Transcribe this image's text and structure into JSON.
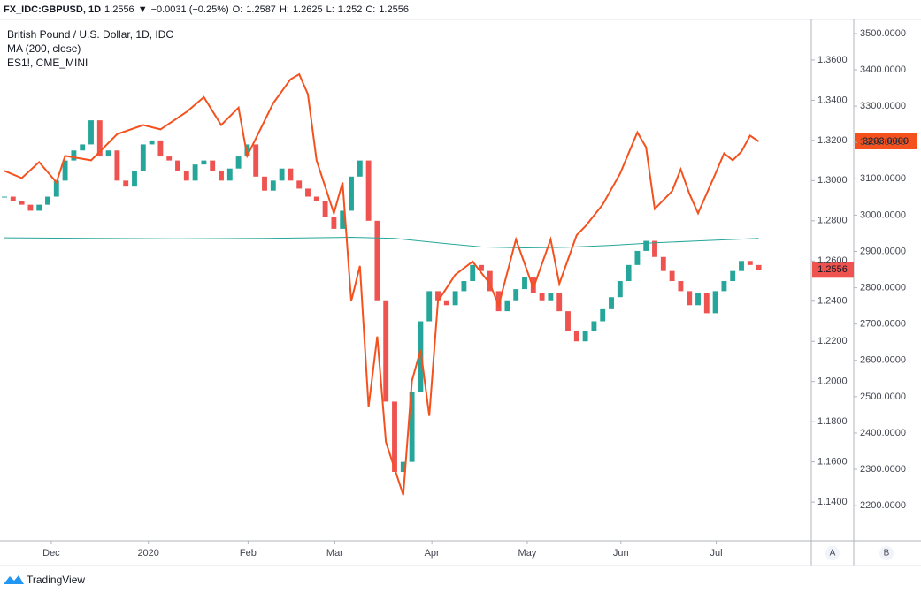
{
  "chart_data": {
    "type": "candlestick",
    "header": {
      "symbol": "FX_IDC:GBPUSD, 1D",
      "last": 1.2556,
      "arrow": "▼",
      "change": "−0.0031 (−0.25%)",
      "ohlc": [
        {
          "label": "O:",
          "value": 1.2587
        },
        {
          "label": "H:",
          "value": 1.2625
        },
        {
          "label": "L:",
          "value": 1.252
        },
        {
          "label": "C:",
          "value": 1.2556
        }
      ]
    },
    "price_label": "1.2556",
    "series": [
      {
        "name": "British Pound / U.S. Dollar, 1D, IDC",
        "up_color": "#26a69a",
        "down_color": "#ef5350",
        "values": [
          1.292,
          1.29,
          1.288,
          1.285,
          1.288,
          1.292,
          1.3,
          1.31,
          1.315,
          1.318,
          1.33,
          1.312,
          1.315,
          1.3,
          1.297,
          1.305,
          1.318,
          1.32,
          1.312,
          1.31,
          1.305,
          1.3,
          1.308,
          1.31,
          1.305,
          1.3,
          1.306,
          1.312,
          1.318,
          1.302,
          1.295,
          1.3,
          1.306,
          1.3,
          1.296,
          1.292,
          1.29,
          1.282,
          1.276,
          1.285,
          1.302,
          1.31,
          1.28,
          1.24,
          1.19,
          1.155,
          1.16,
          1.195,
          1.23,
          1.245,
          1.24,
          1.238,
          1.245,
          1.25,
          1.258,
          1.255,
          1.245,
          1.235,
          1.24,
          1.246,
          1.252,
          1.244,
          1.24,
          1.244,
          1.235,
          1.225,
          1.22,
          1.225,
          1.23,
          1.236,
          1.242,
          1.25,
          1.258,
          1.265,
          1.27,
          1.262,
          1.255,
          1.25,
          1.245,
          1.238,
          1.244,
          1.234,
          1.245,
          1.25,
          1.255,
          1.26,
          1.258,
          1.2556
        ]
      },
      {
        "name": "MA (200, close)",
        "color": "#26a69a",
        "x": [
          0,
          10,
          20,
          30,
          40,
          45,
          50,
          55,
          60,
          65,
          70,
          75,
          80,
          87
        ],
        "values": [
          1.2715,
          1.2712,
          1.271,
          1.2712,
          1.2718,
          1.2712,
          1.269,
          1.267,
          1.2665,
          1.2668,
          1.2678,
          1.269,
          1.27,
          1.2712
        ]
      },
      {
        "name": "ES1!, CME_MINI",
        "color": "#f4511e",
        "axis": "y2",
        "last_label": "3203.0000",
        "x": [
          0,
          2,
          4,
          6,
          7,
          10,
          13,
          16,
          18,
          21,
          23,
          25,
          27,
          28,
          29,
          31,
          33,
          34,
          35,
          36,
          38,
          39,
          40,
          41,
          42,
          43,
          44,
          46,
          47,
          48,
          49,
          50,
          52,
          54,
          56,
          57,
          59,
          61,
          63,
          64,
          66,
          67,
          69,
          71,
          73,
          74,
          75,
          77,
          78,
          79,
          80,
          82,
          83,
          84,
          85,
          86,
          87
        ],
        "values": [
          3122,
          3102,
          3146,
          3090,
          3163,
          3151,
          3223,
          3248,
          3236,
          3284,
          3325,
          3248,
          3296,
          3163,
          3211,
          3308,
          3374,
          3388,
          3333,
          3151,
          3005,
          3090,
          2763,
          2860,
          2472,
          2666,
          2375,
          2229,
          2544,
          2629,
          2447,
          2763,
          2836,
          2872,
          2811,
          2751,
          2933,
          2799,
          2933,
          2811,
          2945,
          2969,
          3029,
          3114,
          3228,
          3187,
          3017,
          3066,
          3126,
          3059,
          3005,
          3114,
          3170,
          3151,
          3175,
          3219,
          3203
        ]
      }
    ],
    "xlim": [
      -0.51,
      93.06
    ],
    "xticks": [
      {
        "value": 5.4,
        "label": "Dec"
      },
      {
        "value": 16.6,
        "label": "2020"
      },
      {
        "value": 28.1,
        "label": "Feb"
      },
      {
        "value": 38.1,
        "label": "Mar"
      },
      {
        "value": 49.3,
        "label": "Apr"
      },
      {
        "value": 60.3,
        "label": "May"
      },
      {
        "value": 71.1,
        "label": "Jun"
      },
      {
        "value": 82.1,
        "label": "Jul"
      }
    ],
    "ylim": [
      1.1207,
      1.3802
    ],
    "yticks": [
      {
        "value": 1.14,
        "label": "1.1400"
      },
      {
        "value": 1.16,
        "label": "1.1600"
      },
      {
        "value": 1.18,
        "label": "1.1800"
      },
      {
        "value": 1.2,
        "label": "1.2000"
      },
      {
        "value": 1.22,
        "label": "1.2200"
      },
      {
        "value": 1.24,
        "label": "1.2400"
      },
      {
        "value": 1.26,
        "label": "1.2600"
      },
      {
        "value": 1.28,
        "label": "1.2800"
      },
      {
        "value": 1.3,
        "label": "1.3000"
      },
      {
        "value": 1.32,
        "label": "1.3200"
      },
      {
        "value": 1.34,
        "label": "1.3400"
      },
      {
        "value": 1.36,
        "label": "1.3600"
      }
    ],
    "y2lim": [
      2103,
      3538.8
    ],
    "y2ticks": [
      {
        "value": 2200,
        "label": "2200.0000"
      },
      {
        "value": 2300,
        "label": "2300.0000"
      },
      {
        "value": 2400,
        "label": "2400.0000"
      },
      {
        "value": 2500,
        "label": "2500.0000"
      },
      {
        "value": 2600,
        "label": "2600.0000"
      },
      {
        "value": 2700,
        "label": "2700.0000"
      },
      {
        "value": 2800,
        "label": "2800.0000"
      },
      {
        "value": 2900,
        "label": "2900.0000"
      },
      {
        "value": 3000,
        "label": "3000.0000"
      },
      {
        "value": 3100,
        "label": "3100.0000"
      },
      {
        "value": 3200,
        "label": "3200.0000"
      },
      {
        "value": 3300,
        "label": "3300.0000"
      },
      {
        "value": 3400,
        "label": "3400.0000"
      },
      {
        "value": 3500,
        "label": "3500.0000"
      }
    ],
    "axis_buttons": [
      "A",
      "B"
    ],
    "footer": "TradingView"
  }
}
